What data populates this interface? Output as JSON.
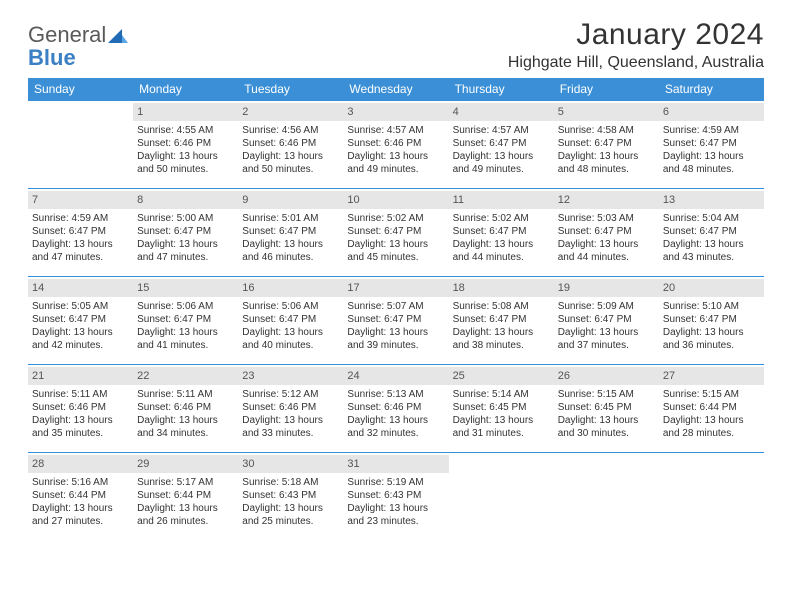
{
  "logo": {
    "word1": "General",
    "word2": "Blue"
  },
  "title": "January 2024",
  "location": "Highgate Hill, Queensland, Australia",
  "header_bg": "#3b8fd6",
  "header_fg": "#ffffff",
  "rule_color": "#3b8fd6",
  "daynum_bg": "#e6e6e6",
  "weekdays": [
    "Sunday",
    "Monday",
    "Tuesday",
    "Wednesday",
    "Thursday",
    "Friday",
    "Saturday"
  ],
  "start_offset": 1,
  "days": [
    {
      "n": 1,
      "sunrise": "4:55 AM",
      "sunset": "6:46 PM",
      "daylight": "13 hours and 50 minutes."
    },
    {
      "n": 2,
      "sunrise": "4:56 AM",
      "sunset": "6:46 PM",
      "daylight": "13 hours and 50 minutes."
    },
    {
      "n": 3,
      "sunrise": "4:57 AM",
      "sunset": "6:46 PM",
      "daylight": "13 hours and 49 minutes."
    },
    {
      "n": 4,
      "sunrise": "4:57 AM",
      "sunset": "6:47 PM",
      "daylight": "13 hours and 49 minutes."
    },
    {
      "n": 5,
      "sunrise": "4:58 AM",
      "sunset": "6:47 PM",
      "daylight": "13 hours and 48 minutes."
    },
    {
      "n": 6,
      "sunrise": "4:59 AM",
      "sunset": "6:47 PM",
      "daylight": "13 hours and 48 minutes."
    },
    {
      "n": 7,
      "sunrise": "4:59 AM",
      "sunset": "6:47 PM",
      "daylight": "13 hours and 47 minutes."
    },
    {
      "n": 8,
      "sunrise": "5:00 AM",
      "sunset": "6:47 PM",
      "daylight": "13 hours and 47 minutes."
    },
    {
      "n": 9,
      "sunrise": "5:01 AM",
      "sunset": "6:47 PM",
      "daylight": "13 hours and 46 minutes."
    },
    {
      "n": 10,
      "sunrise": "5:02 AM",
      "sunset": "6:47 PM",
      "daylight": "13 hours and 45 minutes."
    },
    {
      "n": 11,
      "sunrise": "5:02 AM",
      "sunset": "6:47 PM",
      "daylight": "13 hours and 44 minutes."
    },
    {
      "n": 12,
      "sunrise": "5:03 AM",
      "sunset": "6:47 PM",
      "daylight": "13 hours and 44 minutes."
    },
    {
      "n": 13,
      "sunrise": "5:04 AM",
      "sunset": "6:47 PM",
      "daylight": "13 hours and 43 minutes."
    },
    {
      "n": 14,
      "sunrise": "5:05 AM",
      "sunset": "6:47 PM",
      "daylight": "13 hours and 42 minutes."
    },
    {
      "n": 15,
      "sunrise": "5:06 AM",
      "sunset": "6:47 PM",
      "daylight": "13 hours and 41 minutes."
    },
    {
      "n": 16,
      "sunrise": "5:06 AM",
      "sunset": "6:47 PM",
      "daylight": "13 hours and 40 minutes."
    },
    {
      "n": 17,
      "sunrise": "5:07 AM",
      "sunset": "6:47 PM",
      "daylight": "13 hours and 39 minutes."
    },
    {
      "n": 18,
      "sunrise": "5:08 AM",
      "sunset": "6:47 PM",
      "daylight": "13 hours and 38 minutes."
    },
    {
      "n": 19,
      "sunrise": "5:09 AM",
      "sunset": "6:47 PM",
      "daylight": "13 hours and 37 minutes."
    },
    {
      "n": 20,
      "sunrise": "5:10 AM",
      "sunset": "6:47 PM",
      "daylight": "13 hours and 36 minutes."
    },
    {
      "n": 21,
      "sunrise": "5:11 AM",
      "sunset": "6:46 PM",
      "daylight": "13 hours and 35 minutes."
    },
    {
      "n": 22,
      "sunrise": "5:11 AM",
      "sunset": "6:46 PM",
      "daylight": "13 hours and 34 minutes."
    },
    {
      "n": 23,
      "sunrise": "5:12 AM",
      "sunset": "6:46 PM",
      "daylight": "13 hours and 33 minutes."
    },
    {
      "n": 24,
      "sunrise": "5:13 AM",
      "sunset": "6:46 PM",
      "daylight": "13 hours and 32 minutes."
    },
    {
      "n": 25,
      "sunrise": "5:14 AM",
      "sunset": "6:45 PM",
      "daylight": "13 hours and 31 minutes."
    },
    {
      "n": 26,
      "sunrise": "5:15 AM",
      "sunset": "6:45 PM",
      "daylight": "13 hours and 30 minutes."
    },
    {
      "n": 27,
      "sunrise": "5:15 AM",
      "sunset": "6:44 PM",
      "daylight": "13 hours and 28 minutes."
    },
    {
      "n": 28,
      "sunrise": "5:16 AM",
      "sunset": "6:44 PM",
      "daylight": "13 hours and 27 minutes."
    },
    {
      "n": 29,
      "sunrise": "5:17 AM",
      "sunset": "6:44 PM",
      "daylight": "13 hours and 26 minutes."
    },
    {
      "n": 30,
      "sunrise": "5:18 AM",
      "sunset": "6:43 PM",
      "daylight": "13 hours and 25 minutes."
    },
    {
      "n": 31,
      "sunrise": "5:19 AM",
      "sunset": "6:43 PM",
      "daylight": "13 hours and 23 minutes."
    }
  ],
  "labels": {
    "sunrise": "Sunrise:",
    "sunset": "Sunset:",
    "daylight": "Daylight:"
  }
}
